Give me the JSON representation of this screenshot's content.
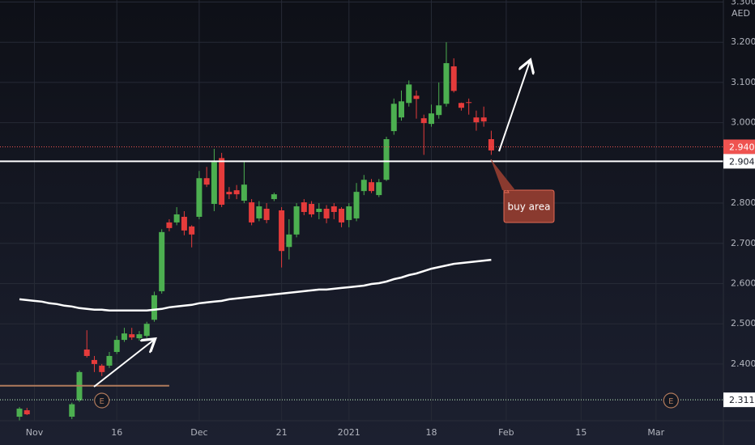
{
  "chart_data": {
    "type": "candlestick",
    "currency": "AED",
    "xlim": [
      -2.6,
      94
    ],
    "xticks": [
      {
        "value": 2,
        "label": "Nov"
      },
      {
        "value": 13,
        "label": "16"
      },
      {
        "value": 24,
        "label": "Dec"
      },
      {
        "value": 35,
        "label": "21"
      },
      {
        "value": 44,
        "label": "2021"
      },
      {
        "value": 55,
        "label": "18"
      },
      {
        "value": 65,
        "label": "Feb"
      },
      {
        "value": 75,
        "label": "15"
      },
      {
        "value": 85,
        "label": "Mar"
      }
    ],
    "ylim": [
      2.259,
      3.305
    ],
    "yticks": [
      {
        "value": 2.4,
        "label": "2.400"
      },
      {
        "value": 2.5,
        "label": "2.500"
      },
      {
        "value": 2.6,
        "label": "2.600"
      },
      {
        "value": 2.7,
        "label": "2.700"
      },
      {
        "value": 2.8,
        "label": "2.800"
      },
      {
        "value": 3.0,
        "label": "3.000"
      },
      {
        "value": 3.1,
        "label": "3.100"
      },
      {
        "value": 3.2,
        "label": "3.200"
      },
      {
        "value": 3.3,
        "label": "3.300"
      }
    ],
    "grid": true,
    "up_color": "#4caf50",
    "down_color": "#e53b3b",
    "open": [
      2.269,
      2.285,
      null,
      null,
      null,
      null,
      null,
      2.269,
      2.31,
      2.436,
      2.41,
      2.396,
      2.396,
      2.43,
      2.46,
      2.474,
      2.464,
      2.47,
      2.51,
      2.581,
      2.752,
      2.752,
      2.766,
      2.742,
      2.766,
      2.862,
      2.798,
      2.912,
      2.828,
      2.832,
      2.806,
      2.802,
      2.762,
      2.786,
      2.81,
      2.782,
      2.691,
      2.722,
      2.802,
      2.798,
      2.778,
      2.786,
      2.792,
      2.786,
      2.758,
      2.762,
      2.83,
      2.852,
      2.82,
      2.858,
      2.979,
      3.013,
      3.049,
      3.067,
      3.011,
      2.997,
      3.019,
      3.047,
      3.14,
      3.049,
      3.051,
      3.013,
      3.013,
      2.959
    ],
    "high": [
      2.293,
      2.291,
      null,
      null,
      null,
      null,
      null,
      2.304,
      2.384,
      2.484,
      2.42,
      2.4,
      2.43,
      2.47,
      2.49,
      2.49,
      2.482,
      2.505,
      2.58,
      2.735,
      2.76,
      2.79,
      2.78,
      2.745,
      2.88,
      2.89,
      2.935,
      2.925,
      2.84,
      2.845,
      2.905,
      2.81,
      2.805,
      2.8,
      2.826,
      2.79,
      2.76,
      2.8,
      2.81,
      2.805,
      2.8,
      2.795,
      2.8,
      2.79,
      2.8,
      2.85,
      2.87,
      2.86,
      2.86,
      2.965,
      3.06,
      3.08,
      3.105,
      3.08,
      3.02,
      3.045,
      3.1,
      3.2,
      3.16,
      3.05,
      3.06,
      3.03,
      3.04,
      2.98
    ],
    "low": [
      2.259,
      2.273,
      null,
      null,
      null,
      null,
      null,
      2.263,
      2.306,
      2.416,
      2.38,
      2.37,
      2.39,
      2.425,
      2.455,
      2.46,
      2.458,
      2.465,
      2.505,
      2.575,
      2.73,
      2.745,
      2.72,
      2.69,
      2.76,
      2.84,
      2.78,
      2.79,
      2.81,
      2.81,
      2.8,
      2.745,
      2.755,
      2.75,
      2.805,
      2.64,
      2.66,
      2.715,
      2.77,
      2.765,
      2.76,
      2.75,
      2.76,
      2.74,
      2.74,
      2.755,
      2.82,
      2.825,
      2.815,
      2.855,
      2.97,
      3.005,
      3.04,
      3.01,
      2.92,
      2.99,
      3.01,
      3.04,
      3.075,
      3.03,
      3.02,
      2.98,
      2.99,
      2.92
    ],
    "close": [
      2.289,
      2.275,
      null,
      null,
      null,
      null,
      null,
      2.3,
      2.38,
      2.42,
      2.4,
      2.38,
      2.42,
      2.46,
      2.476,
      2.466,
      2.474,
      2.5,
      2.571,
      2.728,
      2.738,
      2.772,
      2.732,
      2.722,
      2.862,
      2.846,
      2.902,
      2.796,
      2.822,
      2.822,
      2.846,
      2.752,
      2.792,
      2.758,
      2.822,
      2.681,
      2.722,
      2.792,
      2.778,
      2.772,
      2.786,
      2.762,
      2.778,
      2.752,
      2.792,
      2.828,
      2.858,
      2.83,
      2.852,
      2.959,
      3.047,
      3.053,
      3.095,
      3.059,
      2.999,
      3.023,
      3.043,
      3.148,
      3.079,
      3.037,
      3.049,
      3.001,
      3.003,
      2.931
    ],
    "moving_average": {
      "color": "#ffffff",
      "values": [
        2.561,
        2.559,
        2.557,
        2.555,
        2.551,
        2.549,
        2.545,
        2.543,
        2.539,
        2.537,
        2.535,
        2.535,
        2.533,
        2.533,
        2.533,
        2.533,
        2.533,
        2.533,
        2.535,
        2.537,
        2.541,
        2.543,
        2.545,
        2.547,
        2.551,
        2.553,
        2.555,
        2.557,
        2.561,
        2.563,
        2.565,
        2.567,
        2.569,
        2.571,
        2.573,
        2.575,
        2.577,
        2.579,
        2.581,
        2.583,
        2.585,
        2.585,
        2.587,
        2.589,
        2.591,
        2.593,
        2.595,
        2.599,
        2.601,
        2.605,
        2.611,
        2.615,
        2.621,
        2.625,
        2.631,
        2.637,
        2.641,
        2.645,
        2.649,
        2.651,
        2.653,
        2.655,
        2.657,
        2.659
      ]
    },
    "levels": [
      {
        "value": 2.94,
        "label": "2.940",
        "color": "#ef5350",
        "style": "dotted"
      },
      {
        "value": 2.904,
        "label": "2.904",
        "color": "#ffffff",
        "style": "solid"
      },
      {
        "value": 2.311,
        "label": "2.311",
        "color": "#c8f7c5",
        "style": "dotted"
      },
      {
        "value": 2.346,
        "color": "#b07a5c",
        "style": "solid",
        "x_end": 20
      }
    ],
    "events": [
      {
        "x": 11,
        "label": "E"
      },
      {
        "x": 87,
        "label": "E"
      }
    ],
    "annotation": "buy area"
  }
}
